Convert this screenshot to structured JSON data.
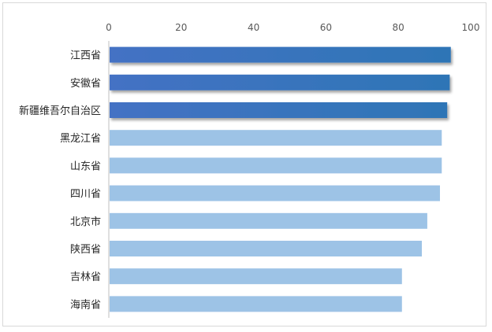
{
  "chart_data": {
    "type": "bar",
    "orientation": "horizontal",
    "title": "",
    "xlabel": "",
    "ylabel": "",
    "xlim": [
      0,
      100
    ],
    "xticks": [
      "0",
      "20",
      "40",
      "60",
      "80",
      "100"
    ],
    "x_axis_position": "top",
    "grid": false,
    "categories": [
      "江西省",
      "安徽省",
      "新疆维吾尔自治区",
      "黑龙江省",
      "山东省",
      "四川省",
      "北京市",
      "陕西省",
      "吉林省",
      "海南省"
    ],
    "values": [
      94.5,
      94.2,
      93.5,
      92,
      92,
      91.5,
      88,
      86.5,
      81,
      81
    ],
    "highlighted": [
      true,
      true,
      true,
      false,
      false,
      false,
      false,
      false,
      false,
      false
    ],
    "colors": {
      "highlight_start": "#4472c4",
      "highlight_end": "#2e75b6",
      "normal": "#9dc3e6",
      "axis": "#bfbfbf"
    }
  }
}
